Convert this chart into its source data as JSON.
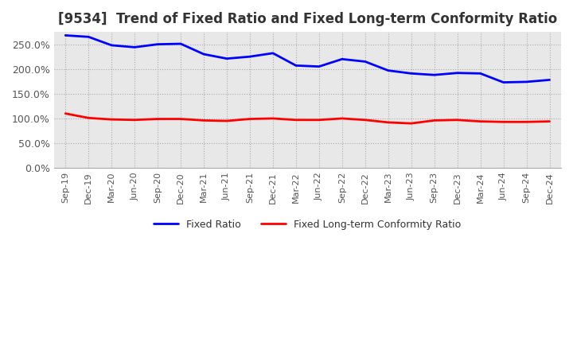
{
  "title": "[9534]  Trend of Fixed Ratio and Fixed Long-term Conformity Ratio",
  "x_labels": [
    "Sep-19",
    "Dec-19",
    "Mar-20",
    "Jun-20",
    "Sep-20",
    "Dec-20",
    "Mar-21",
    "Jun-21",
    "Sep-21",
    "Dec-21",
    "Mar-22",
    "Jun-22",
    "Sep-22",
    "Dec-22",
    "Mar-23",
    "Jun-23",
    "Sep-23",
    "Dec-23",
    "Mar-24",
    "Jun-24",
    "Sep-24",
    "Dec-24"
  ],
  "fixed_ratio": [
    268,
    265,
    248,
    244,
    250,
    251,
    230,
    221,
    225,
    232,
    207,
    205,
    220,
    215,
    197,
    191,
    188,
    192,
    191,
    173,
    174,
    178
  ],
  "fixed_lt_ratio": [
    110,
    101,
    98,
    97,
    99,
    99,
    96,
    95,
    99,
    100,
    97,
    97,
    100,
    97,
    92,
    90,
    96,
    97,
    94,
    93,
    93,
    94
  ],
  "fixed_ratio_color": "#0000FF",
  "fixed_lt_ratio_color": "#FF0000",
  "ylim": [
    0,
    275
  ],
  "yticks": [
    0,
    50,
    100,
    150,
    200,
    250
  ],
  "plot_bg_color": "#E8E8E8",
  "background_color": "#FFFFFF",
  "grid_color": "#AAAAAA",
  "legend_labels": [
    "Fixed Ratio",
    "Fixed Long-term Conformity Ratio"
  ],
  "title_fontsize": 12,
  "tick_label_color": "#555555"
}
